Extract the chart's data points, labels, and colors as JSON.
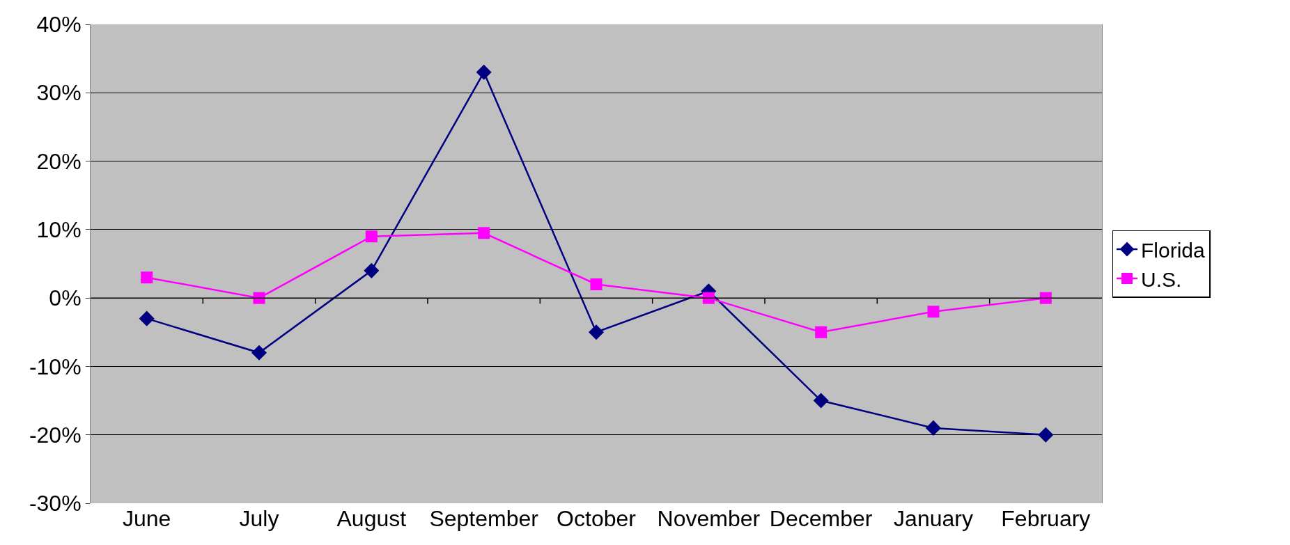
{
  "chart_data": {
    "type": "line",
    "categories": [
      "June",
      "July",
      "August",
      "September",
      "October",
      "November",
      "December",
      "January",
      "February"
    ],
    "series": [
      {
        "name": "Florida",
        "color": "#000080",
        "marker": "diamond",
        "values": [
          -3,
          -8,
          4,
          33,
          -5,
          1,
          -15,
          -19,
          -20
        ]
      },
      {
        "name": "U.S.",
        "color": "#ff00ff",
        "marker": "square",
        "values": [
          3,
          0,
          9,
          9.5,
          2,
          0,
          -5,
          -2,
          0
        ]
      }
    ],
    "ylim": [
      -30,
      40
    ],
    "yticks": [
      {
        "value": -30,
        "label": "-30%"
      },
      {
        "value": -20,
        "label": "-20%"
      },
      {
        "value": -10,
        "label": "-10%"
      },
      {
        "value": 0,
        "label": "0%"
      },
      {
        "value": 10,
        "label": "10%"
      },
      {
        "value": 20,
        "label": "20%"
      },
      {
        "value": 30,
        "label": "30%"
      },
      {
        "value": 40,
        "label": "40%"
      }
    ],
    "grid": "y",
    "legend": "right",
    "line_style": "solid"
  }
}
